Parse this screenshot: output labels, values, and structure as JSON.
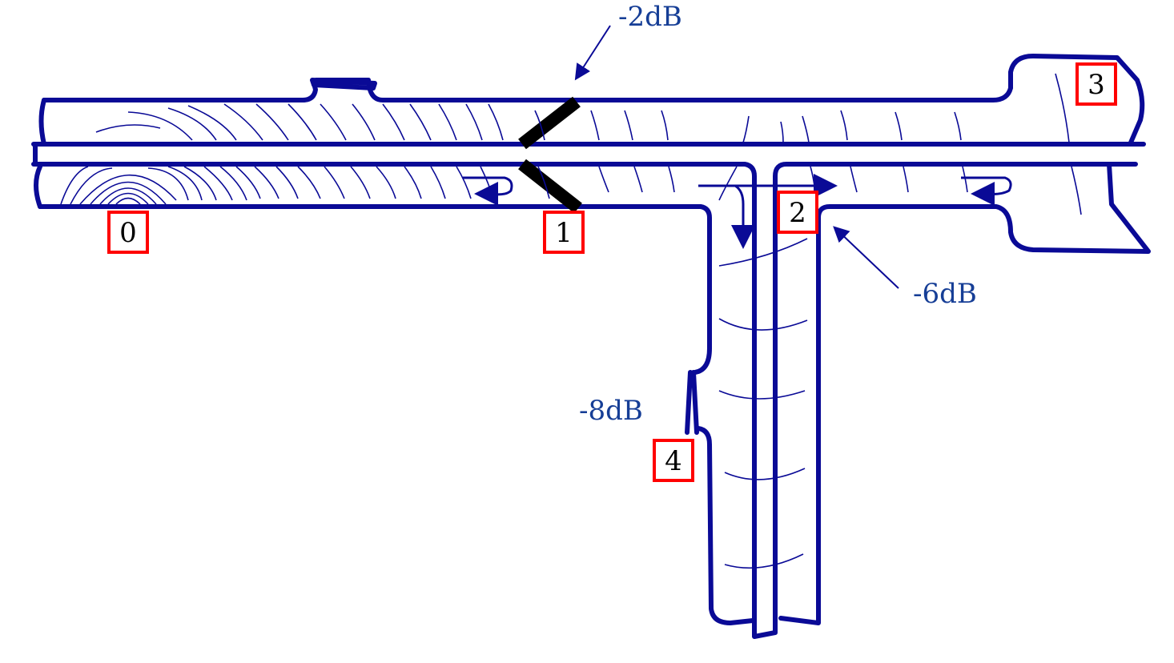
{
  "attenuation_labels": {
    "db_2": "-2dB",
    "db_6": "-6dB",
    "db_8": "-8dB"
  },
  "points": {
    "p0": "0",
    "p1": "1",
    "p2": "2",
    "p3": "3",
    "p4": "4"
  },
  "colors": {
    "duct": "#0a0a96",
    "label_text": "#163e96",
    "point_box": "#ff0000",
    "mirror": "#000000"
  }
}
